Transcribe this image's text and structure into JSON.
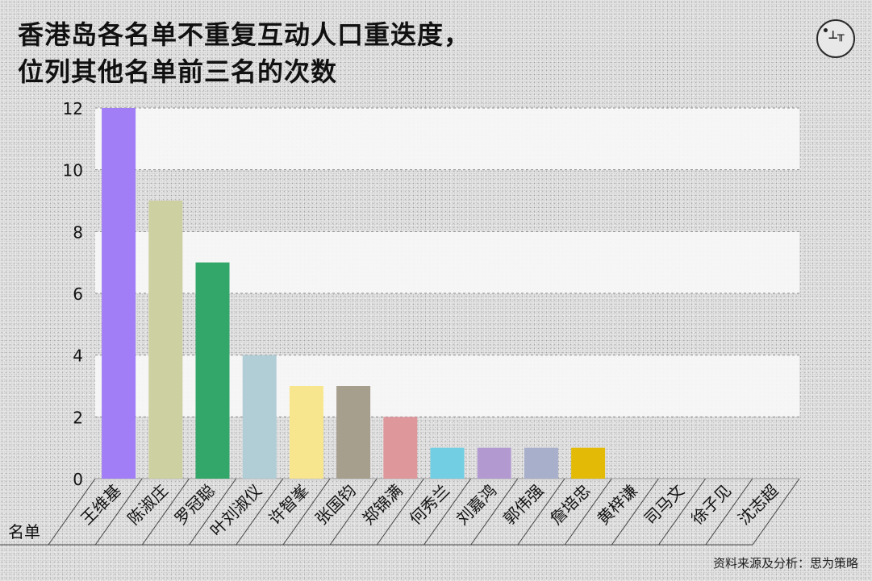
{
  "title_lines": [
    "香港岛各名单不重复互动人口重迭度，",
    "位列其他名单前三名的次数"
  ],
  "source": "资料来源及分析：思为策略",
  "chart_data": {
    "type": "bar",
    "title": "香港岛各名单不重复互动人口重迭度，位列其他名单前三名的次数",
    "xlabel": "名单",
    "ylabel": "",
    "ylim": [
      0,
      12
    ],
    "yticks": [
      0,
      2,
      4,
      6,
      8,
      10,
      12
    ],
    "grid": true,
    "categories": [
      "王维基",
      "陈淑庄",
      "罗冠聪",
      "叶刘淑仪",
      "许智峯",
      "张国钧",
      "郑锦满",
      "何秀兰",
      "刘嘉鸿",
      "郭伟强",
      "詹培忠",
      "黄梓谦",
      "司马文",
      "徐子见",
      "沈志超"
    ],
    "values": [
      12,
      9,
      7,
      4,
      3,
      3,
      2,
      1,
      1,
      1,
      1,
      0,
      0,
      0,
      0
    ],
    "colors": [
      "#a17ef5",
      "#cdd0a0",
      "#33a66a",
      "#b1cdd6",
      "#f8e68e",
      "#a69f8e",
      "#de979b",
      "#72cfe3",
      "#b29ad0",
      "#a8afcb",
      "#e3bb06",
      "#cccccc",
      "#cccccc",
      "#cccccc",
      "#cccccc"
    ]
  }
}
